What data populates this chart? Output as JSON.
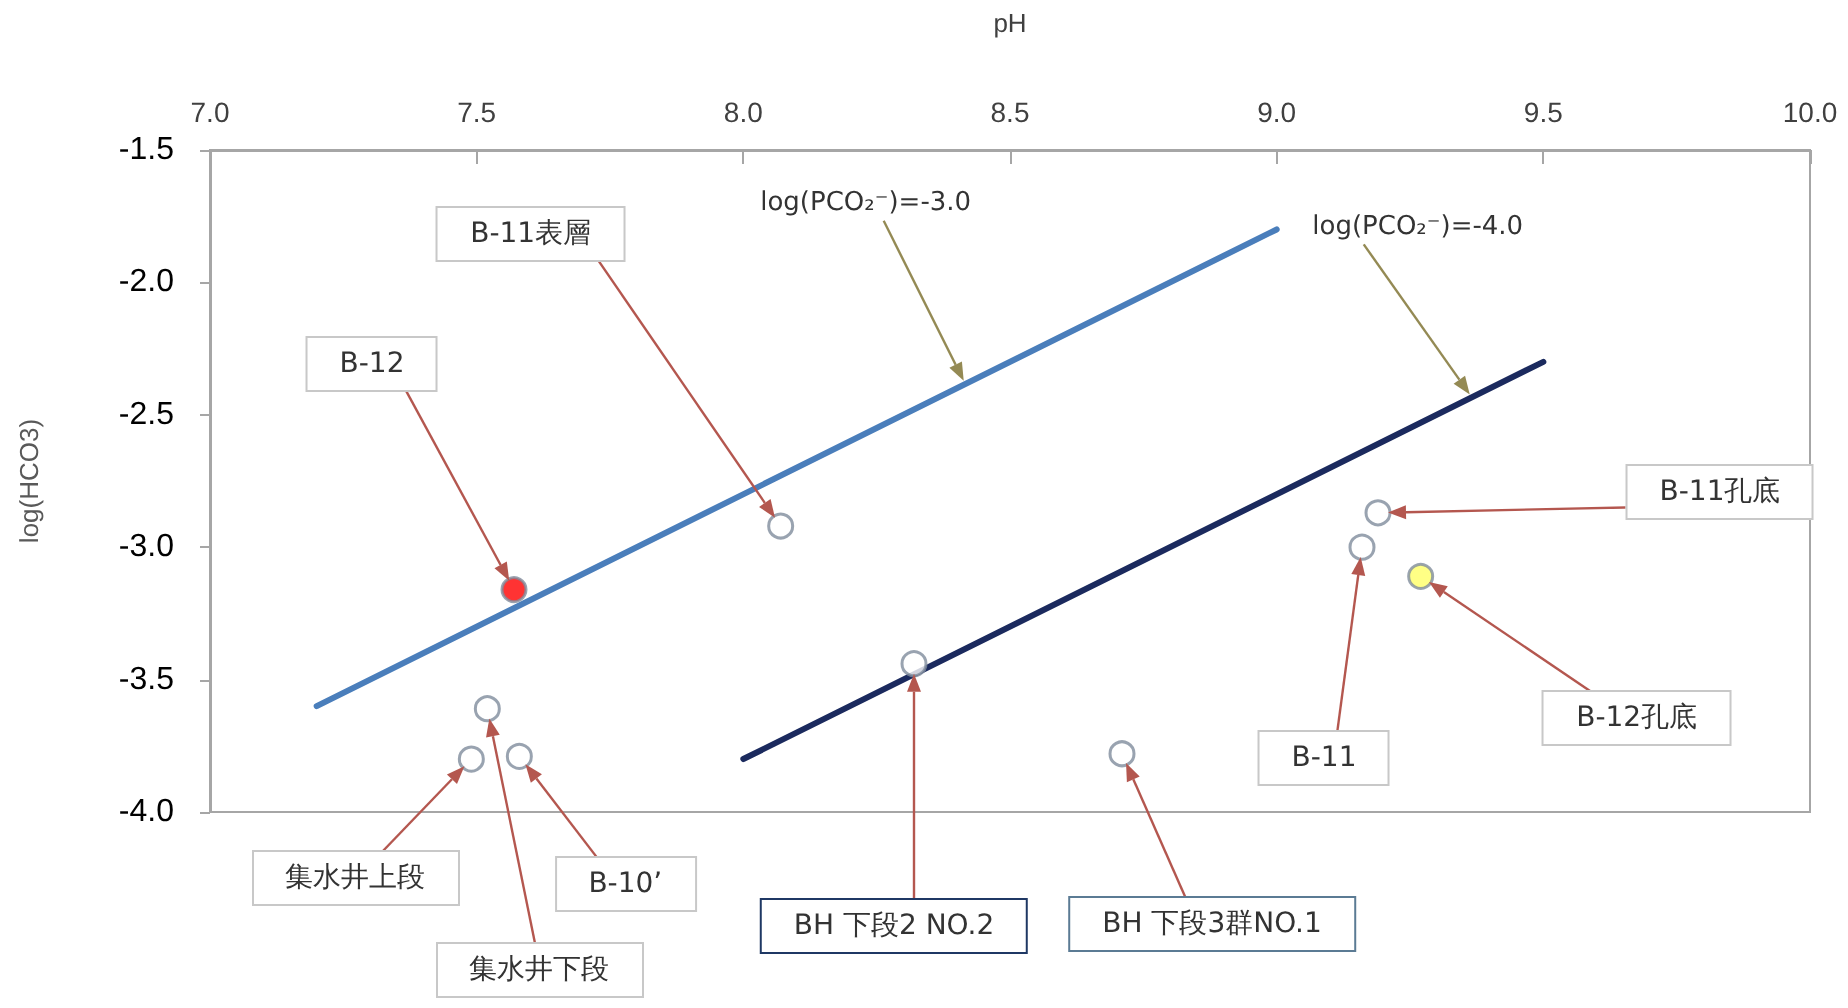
{
  "chart_data": {
    "type": "scatter",
    "xlabel": "pH",
    "ylabel": "log(HCO3)",
    "xlim": [
      7,
      10
    ],
    "xticks": [
      {
        "value": 7,
        "label": "7.0"
      },
      7.5,
      {
        "value": 8,
        "label": "8.0"
      },
      8.5,
      {
        "value": 9,
        "label": "9.0"
      },
      9.5,
      {
        "value": 10,
        "label": "10.0"
      }
    ],
    "ylim": [
      -4,
      -1.5
    ],
    "yticks": [
      {
        "value": -4,
        "label": "-4.0"
      },
      -3.5,
      {
        "value": -3,
        "label": "-3.0"
      },
      -2.5,
      {
        "value": -2,
        "label": "-2.0"
      },
      -1.5
    ],
    "series": [
      {
        "type": "line",
        "name": "log(PCO₂⁻)=-3.0",
        "color": "#4a7ebb",
        "x": [
          7.2,
          9.0
        ],
        "values": [
          -3.6,
          -1.8
        ]
      },
      {
        "type": "line",
        "name": "log(PCO₂⁻)=-4.0",
        "color": "#1b2a5e",
        "x": [
          8.0,
          9.5
        ],
        "values": [
          -3.8,
          -2.3
        ]
      },
      {
        "name": "B-12",
        "color": "#ff0000",
        "marker": "circle",
        "x": [
          7.57
        ],
        "values": [
          -3.16
        ]
      },
      {
        "name": "B-11表層",
        "color": "#ffffff",
        "marker": "circle",
        "x": [
          8.07
        ],
        "values": [
          -2.92
        ]
      },
      {
        "name": "集水井上段",
        "color": "#ffffff",
        "marker": "circle",
        "x": [
          7.49
        ],
        "values": [
          -3.8
        ]
      },
      {
        "name": "集水井下段",
        "color": "#ffffff",
        "marker": "circle",
        "x": [
          7.52
        ],
        "values": [
          -3.61
        ]
      },
      {
        "name": "B-10’",
        "color": "#ffffff",
        "marker": "circle",
        "x": [
          7.58
        ],
        "values": [
          -3.79
        ]
      },
      {
        "name": "BH 下段2 NO.2",
        "color": "#ffffff",
        "marker": "circle",
        "x": [
          8.32
        ],
        "values": [
          -3.44
        ]
      },
      {
        "name": "BH 下段3群NO.1",
        "color": "#ffffff",
        "marker": "circle",
        "x": [
          8.71
        ],
        "values": [
          -3.78
        ]
      },
      {
        "name": "B-11",
        "color": "#ffffff",
        "marker": "circle",
        "x": [
          9.16
        ],
        "values": [
          -3.0
        ]
      },
      {
        "name": "B-11孔底",
        "color": "#ffffff",
        "marker": "circle",
        "x": [
          9.19
        ],
        "values": [
          -2.87
        ]
      },
      {
        "name": "B-12孔底",
        "color": "#ffff66",
        "marker": "circle",
        "x": [
          9.27
        ],
        "values": [
          -3.11
        ]
      }
    ]
  }
}
